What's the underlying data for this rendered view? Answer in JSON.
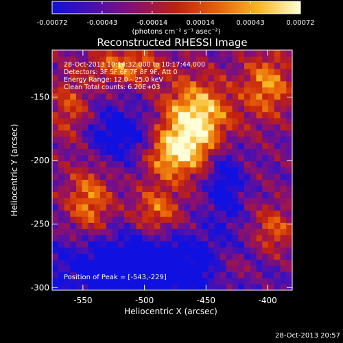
{
  "colorbar": {
    "tick_labels": [
      "-0.00072",
      "-0.00043",
      "-0.00014",
      "0.00014",
      "0.00043",
      "0.00072"
    ],
    "unit_label": "(photons cm⁻² s⁻¹ asec⁻²)",
    "colormap": [
      "#1010e0",
      "#4a10b0",
      "#8a1070",
      "#c02010",
      "#e86008",
      "#f8b820",
      "#ffffd8"
    ]
  },
  "chart_data": {
    "type": "heatmap",
    "title": "Reconstructed RHESSI Image",
    "xlabel": "Heliocentric X (arcsec)",
    "ylabel": "Heliocentric Y (arcsec)",
    "xlim": [
      -575,
      -380
    ],
    "ylim": [
      -302,
      -113
    ],
    "x_ticks": [
      -550,
      -500,
      -450,
      -400
    ],
    "y_ticks": [
      -150,
      -200,
      -250,
      -300
    ],
    "x_tick_labels": [
      "-550",
      "-500",
      "-450",
      "-400"
    ],
    "y_tick_labels": [
      "-150",
      "-200",
      "-250",
      "-300"
    ],
    "value_range": [
      -0.00072,
      0.00072
    ],
    "grid": false,
    "peak": [
      -543,
      -229
    ]
  },
  "info": {
    "lines": [
      "28-Oct-2013 10:14:32.000 to 10:17:44.000",
      "Detectors: 3F 5F 6F 7F 8F 9F, Att 0",
      "Energy Range: 12.0 - 25.0 keV",
      "Clean     Total counts: 6.20E+03"
    ],
    "peak_label": "Position of Peak = [-543,-229]"
  },
  "footer": {
    "timestamp": "28-Oct-2013 20:57"
  }
}
